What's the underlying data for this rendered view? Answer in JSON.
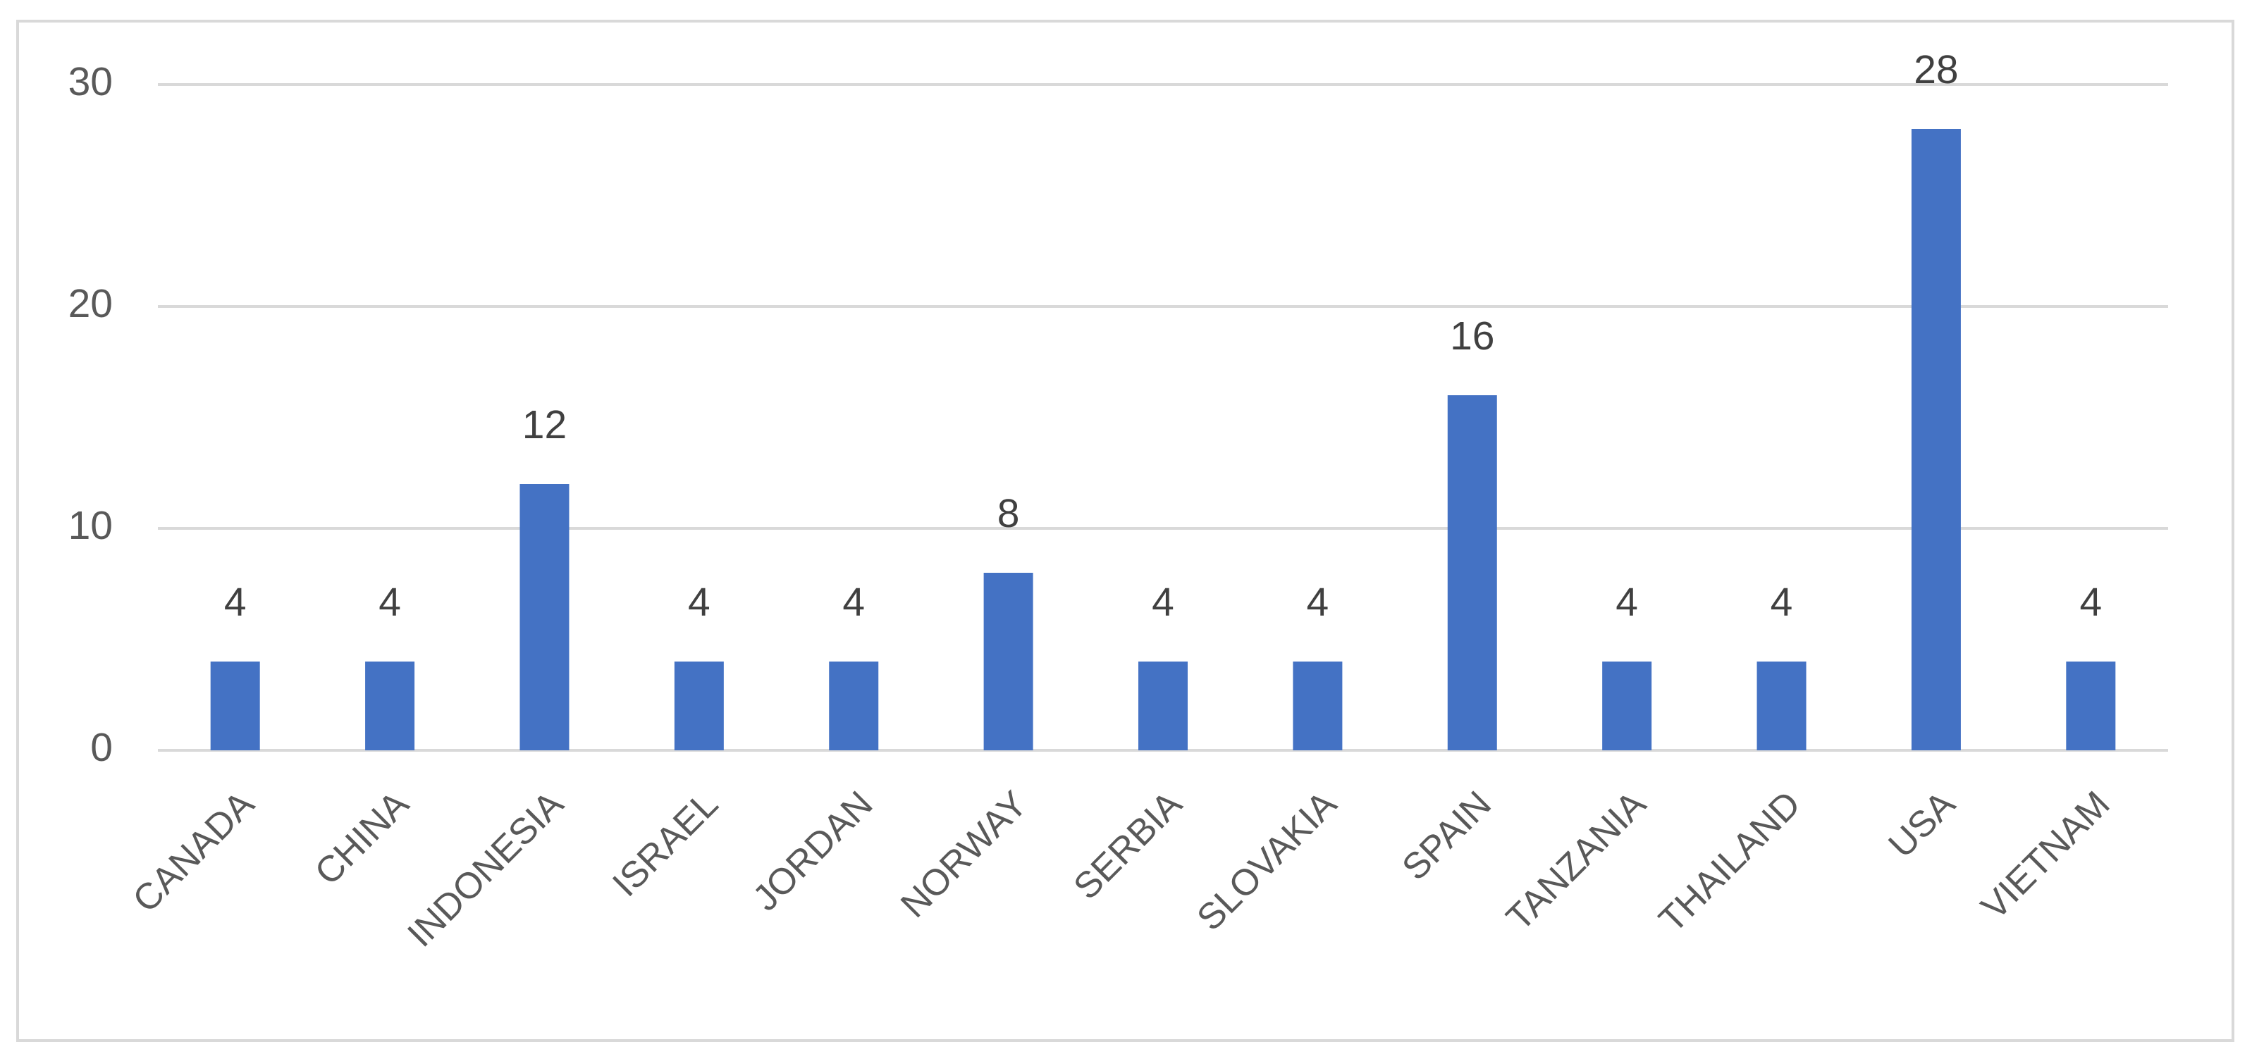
{
  "chart_data": {
    "type": "bar",
    "categories": [
      "CANADA",
      "CHINA",
      "INDONESIA",
      "ISRAEL",
      "JORDAN",
      "NORWAY",
      "SERBIA",
      "SLOVAKIA",
      "SPAIN",
      "TANZANIA",
      "THAILAND",
      "USA",
      "VIETNAM"
    ],
    "values": [
      4,
      4,
      12,
      4,
      4,
      8,
      4,
      4,
      16,
      4,
      4,
      28,
      4
    ],
    "color": "#4472c4",
    "ylim": [
      0,
      30
    ],
    "yticks": [
      0,
      10,
      20,
      30
    ],
    "grid": true,
    "data_labels": true
  }
}
